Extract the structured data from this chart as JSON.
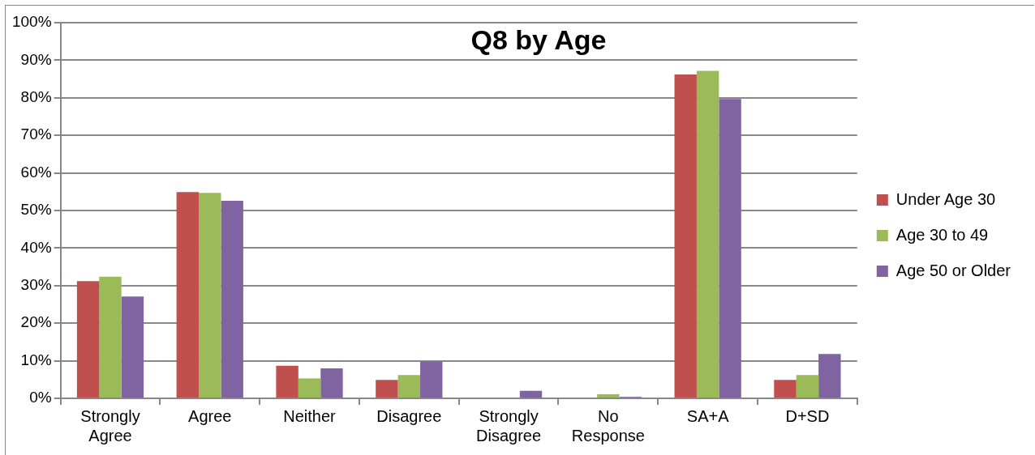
{
  "chart_data": {
    "type": "bar",
    "title": "Q8 by Age",
    "categories": [
      "Strongly Agree",
      "Agree",
      "Neither",
      "Disagree",
      "Strongly Disagree",
      "No Response",
      "SA+A",
      "D+SD"
    ],
    "series": [
      {
        "name": "Under Age 30",
        "color": "#c0504d",
        "values": [
          31.2,
          54.9,
          8.7,
          4.9,
          0,
          0,
          86.2,
          4.9
        ]
      },
      {
        "name": "Age 30 to 49",
        "color": "#9bbb59",
        "values": [
          32.4,
          54.7,
          5.3,
          6.2,
          0,
          1.1,
          87.2,
          6.2
        ]
      },
      {
        "name": "Age 50 or Older",
        "color": "#8064a2",
        "values": [
          27.1,
          52.6,
          8.0,
          9.8,
          2.0,
          0.4,
          79.7,
          11.8
        ]
      }
    ],
    "ylim": [
      0,
      100
    ],
    "yticks": [
      {
        "value": 0,
        "label": "0%"
      },
      {
        "value": 10,
        "label": "10%"
      },
      {
        "value": 20,
        "label": "20%"
      },
      {
        "value": 30,
        "label": "30%"
      },
      {
        "value": 40,
        "label": "40%"
      },
      {
        "value": 50,
        "label": "50%"
      },
      {
        "value": 60,
        "label": "60%"
      },
      {
        "value": 70,
        "label": "70%"
      },
      {
        "value": 80,
        "label": "80%"
      },
      {
        "value": 90,
        "label": "90%"
      },
      {
        "value": 100,
        "label": "100%"
      }
    ],
    "grid": "y",
    "legend": "right"
  }
}
